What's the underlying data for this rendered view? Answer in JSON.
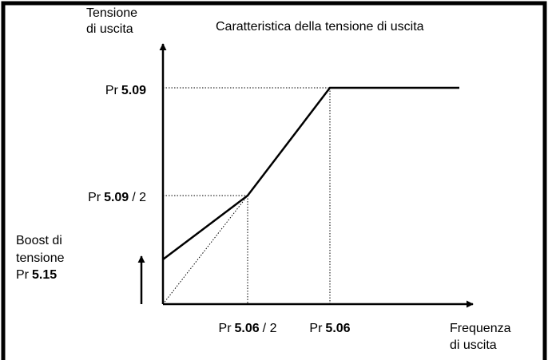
{
  "title": "Caratteristica della tensione di uscita",
  "y_axis_label": [
    "Tensione",
    "di uscita"
  ],
  "x_axis_label": [
    "Frequenza",
    "di uscita"
  ],
  "y_levels": [
    {
      "prefix": "Pr",
      "param": "5.09"
    },
    {
      "prefix": "Pr",
      "param": "5.09",
      "suffix": "/ 2"
    }
  ],
  "x_levels": [
    {
      "prefix": "Pr",
      "param": "5.06",
      "suffix": "/ 2"
    },
    {
      "prefix": "Pr",
      "param": "5.06"
    }
  ],
  "boost": {
    "lines": [
      "Boost di",
      "tensione"
    ],
    "prefix": "Pr",
    "param": "5.15"
  }
}
